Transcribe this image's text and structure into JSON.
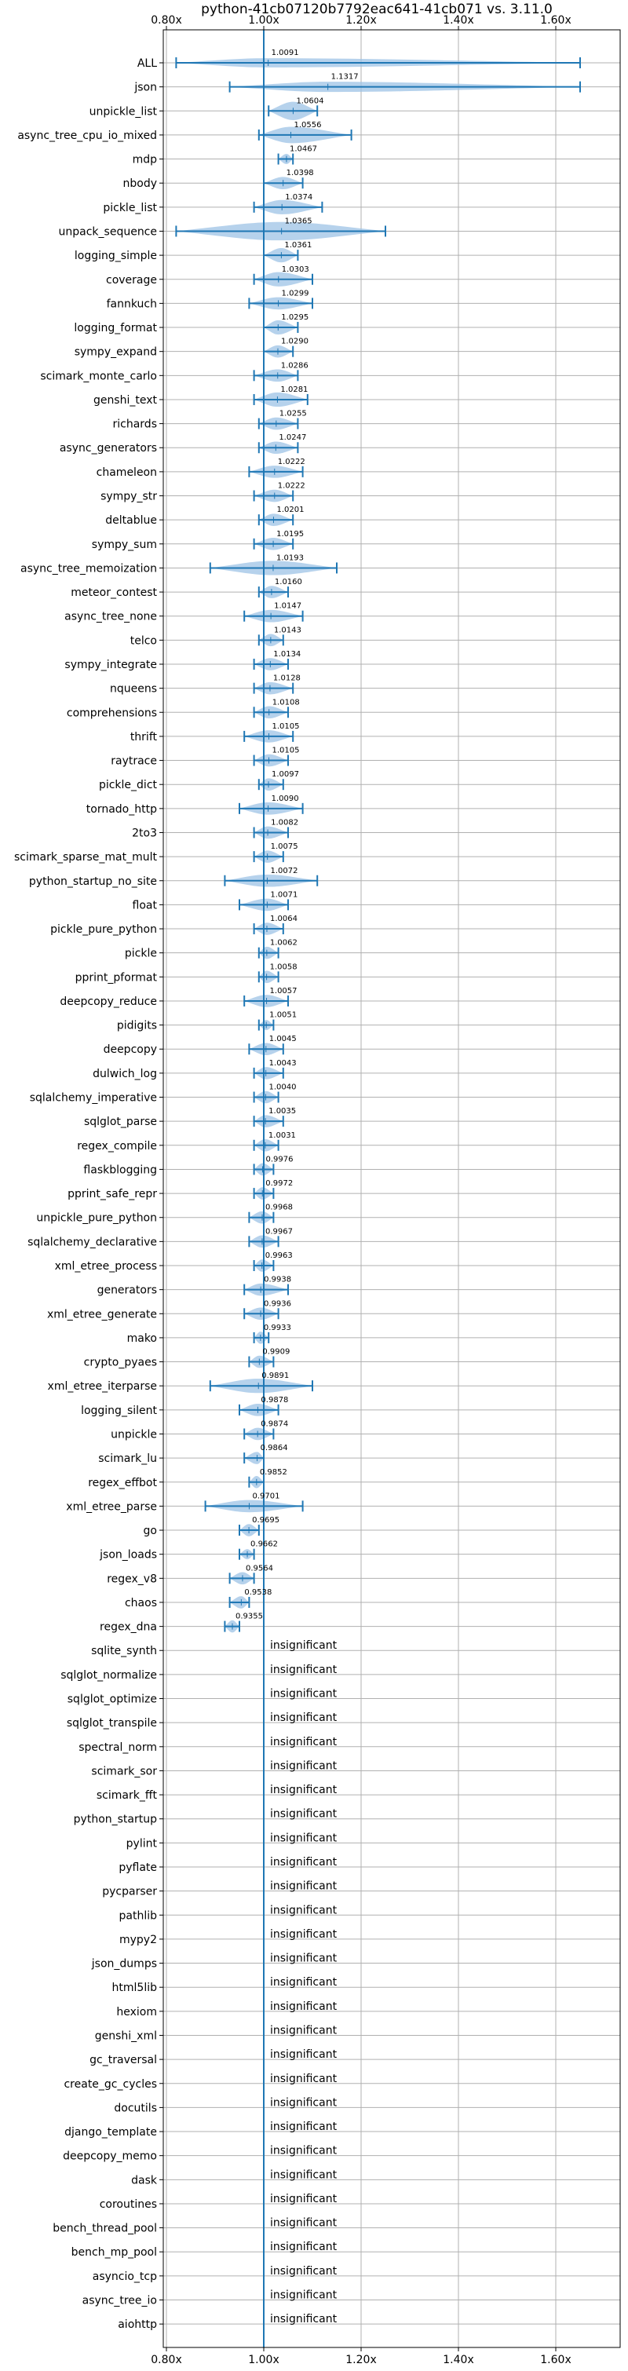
{
  "chart_data": {
    "type": "violin",
    "title": "python-41cb07120b7792eac641-41cb071 vs. 3.11.0",
    "xlim": [
      0.8,
      1.68
    ],
    "xticks": [
      0.8,
      1.0,
      1.2,
      1.4,
      1.6
    ],
    "xtick_labels": [
      "0.80x",
      "1.00x",
      "1.20x",
      "1.40x",
      "1.60x"
    ],
    "reference_line": 1.0,
    "grid": true,
    "insignificant_label": "insignificant",
    "colors": {
      "violin": "#9dc3e6",
      "line": "#1f77b4",
      "grid": "#b0b0b0"
    },
    "benchmarks": [
      {
        "name": "ALL",
        "value": 1.0091,
        "label": "1.0091",
        "low": 0.82,
        "high": 1.65,
        "width": 0.45
      },
      {
        "name": "json",
        "value": 1.1317,
        "label": "1.1317",
        "low": 0.93,
        "high": 1.65,
        "width": 0.5
      },
      {
        "name": "unpickle_list",
        "value": 1.0604,
        "label": "1.0604",
        "low": 1.01,
        "high": 1.11,
        "width": 0.9
      },
      {
        "name": "async_tree_cpu_io_mixed",
        "value": 1.0556,
        "label": "1.0556",
        "low": 0.99,
        "high": 1.18,
        "width": 0.8
      },
      {
        "name": "mdp",
        "value": 1.0467,
        "label": "1.0467",
        "low": 1.03,
        "high": 1.06,
        "width": 0.5
      },
      {
        "name": "nbody",
        "value": 1.0398,
        "label": "1.0398",
        "low": 1.0,
        "high": 1.08,
        "width": 0.6
      },
      {
        "name": "pickle_list",
        "value": 1.0374,
        "label": "1.0374",
        "low": 0.98,
        "high": 1.12,
        "width": 0.7
      },
      {
        "name": "unpack_sequence",
        "value": 1.0365,
        "label": "1.0365",
        "low": 0.82,
        "high": 1.25,
        "width": 0.9
      },
      {
        "name": "logging_simple",
        "value": 1.0361,
        "label": "1.0361",
        "low": 1.0,
        "high": 1.07,
        "width": 0.7
      },
      {
        "name": "coverage",
        "value": 1.0303,
        "label": "1.0303",
        "low": 0.98,
        "high": 1.1,
        "width": 0.7
      },
      {
        "name": "fannkuch",
        "value": 1.0299,
        "label": "1.0299",
        "low": 0.97,
        "high": 1.1,
        "width": 0.6
      },
      {
        "name": "logging_format",
        "value": 1.0295,
        "label": "1.0295",
        "low": 1.0,
        "high": 1.07,
        "width": 0.7
      },
      {
        "name": "sympy_expand",
        "value": 1.029,
        "label": "1.0290",
        "low": 1.0,
        "high": 1.06,
        "width": 0.6
      },
      {
        "name": "scimark_monte_carlo",
        "value": 1.0286,
        "label": "1.0286",
        "low": 0.98,
        "high": 1.07,
        "width": 0.6
      },
      {
        "name": "genshi_text",
        "value": 1.0281,
        "label": "1.0281",
        "low": 0.98,
        "high": 1.09,
        "width": 0.7
      },
      {
        "name": "richards",
        "value": 1.0255,
        "label": "1.0255",
        "low": 0.99,
        "high": 1.07,
        "width": 0.6
      },
      {
        "name": "async_generators",
        "value": 1.0247,
        "label": "1.0247",
        "low": 0.99,
        "high": 1.07,
        "width": 0.6
      },
      {
        "name": "chameleon",
        "value": 1.0222,
        "label": "1.0222",
        "low": 0.97,
        "high": 1.08,
        "width": 0.6
      },
      {
        "name": "sympy_str",
        "value": 1.0222,
        "label": "1.0222",
        "low": 0.98,
        "high": 1.06,
        "width": 0.6
      },
      {
        "name": "deltablue",
        "value": 1.0201,
        "label": "1.0201",
        "low": 0.99,
        "high": 1.06,
        "width": 0.6
      },
      {
        "name": "sympy_sum",
        "value": 1.0195,
        "label": "1.0195",
        "low": 0.98,
        "high": 1.06,
        "width": 0.6
      },
      {
        "name": "async_tree_memoization",
        "value": 1.0193,
        "label": "1.0193",
        "low": 0.89,
        "high": 1.15,
        "width": 0.7
      },
      {
        "name": "meteor_contest",
        "value": 1.016,
        "label": "1.0160",
        "low": 0.99,
        "high": 1.05,
        "width": 0.6
      },
      {
        "name": "async_tree_none",
        "value": 1.0147,
        "label": "1.0147",
        "low": 0.96,
        "high": 1.08,
        "width": 0.6
      },
      {
        "name": "telco",
        "value": 1.0143,
        "label": "1.0143",
        "low": 0.99,
        "high": 1.04,
        "width": 0.6
      },
      {
        "name": "sympy_integrate",
        "value": 1.0134,
        "label": "1.0134",
        "low": 0.98,
        "high": 1.05,
        "width": 0.6
      },
      {
        "name": "nqueens",
        "value": 1.0128,
        "label": "1.0128",
        "low": 0.98,
        "high": 1.06,
        "width": 0.6
      },
      {
        "name": "comprehensions",
        "value": 1.0108,
        "label": "1.0108",
        "low": 0.98,
        "high": 1.05,
        "width": 0.6
      },
      {
        "name": "thrift",
        "value": 1.0105,
        "label": "1.0105",
        "low": 0.96,
        "high": 1.06,
        "width": 0.6
      },
      {
        "name": "raytrace",
        "value": 1.0105,
        "label": "1.0105",
        "low": 0.98,
        "high": 1.05,
        "width": 0.6
      },
      {
        "name": "pickle_dict",
        "value": 1.0097,
        "label": "1.0097",
        "low": 0.99,
        "high": 1.04,
        "width": 0.6
      },
      {
        "name": "tornado_http",
        "value": 1.009,
        "label": "1.0090",
        "low": 0.95,
        "high": 1.08,
        "width": 0.6
      },
      {
        "name": "2to3",
        "value": 1.0082,
        "label": "1.0082",
        "low": 0.98,
        "high": 1.05,
        "width": 0.6
      },
      {
        "name": "scimark_sparse_mat_mult",
        "value": 1.0075,
        "label": "1.0075",
        "low": 0.98,
        "high": 1.04,
        "width": 0.6
      },
      {
        "name": "python_startup_no_site",
        "value": 1.0072,
        "label": "1.0072",
        "low": 0.92,
        "high": 1.11,
        "width": 0.6
      },
      {
        "name": "float",
        "value": 1.0071,
        "label": "1.0071",
        "low": 0.95,
        "high": 1.05,
        "width": 0.6
      },
      {
        "name": "pickle_pure_python",
        "value": 1.0064,
        "label": "1.0064",
        "low": 0.98,
        "high": 1.04,
        "width": 0.6
      },
      {
        "name": "pickle",
        "value": 1.0062,
        "label": "1.0062",
        "low": 0.99,
        "high": 1.03,
        "width": 0.6
      },
      {
        "name": "pprint_pformat",
        "value": 1.0058,
        "label": "1.0058",
        "low": 0.99,
        "high": 1.03,
        "width": 0.6
      },
      {
        "name": "deepcopy_reduce",
        "value": 1.0057,
        "label": "1.0057",
        "low": 0.96,
        "high": 1.05,
        "width": 0.6
      },
      {
        "name": "pidigits",
        "value": 1.0051,
        "label": "1.0051",
        "low": 0.99,
        "high": 1.02,
        "width": 0.5
      },
      {
        "name": "deepcopy",
        "value": 1.0045,
        "label": "1.0045",
        "low": 0.97,
        "high": 1.04,
        "width": 0.6
      },
      {
        "name": "dulwich_log",
        "value": 1.0043,
        "label": "1.0043",
        "low": 0.98,
        "high": 1.04,
        "width": 0.6
      },
      {
        "name": "sqlalchemy_imperative",
        "value": 1.004,
        "label": "1.0040",
        "low": 0.98,
        "high": 1.03,
        "width": 0.6
      },
      {
        "name": "sqlglot_parse",
        "value": 1.0035,
        "label": "1.0035",
        "low": 0.98,
        "high": 1.04,
        "width": 0.6
      },
      {
        "name": "regex_compile",
        "value": 1.0031,
        "label": "1.0031",
        "low": 0.98,
        "high": 1.03,
        "width": 0.6
      },
      {
        "name": "flaskblogging",
        "value": 0.9976,
        "label": "0.9976",
        "low": 0.98,
        "high": 1.02,
        "width": 0.6
      },
      {
        "name": "pprint_safe_repr",
        "value": 0.9972,
        "label": "0.9972",
        "low": 0.98,
        "high": 1.02,
        "width": 0.6
      },
      {
        "name": "unpickle_pure_python",
        "value": 0.9968,
        "label": "0.9968",
        "low": 0.97,
        "high": 1.02,
        "width": 0.6
      },
      {
        "name": "sqlalchemy_declarative",
        "value": 0.9967,
        "label": "0.9967",
        "low": 0.97,
        "high": 1.03,
        "width": 0.6
      },
      {
        "name": "xml_etree_process",
        "value": 0.9963,
        "label": "0.9963",
        "low": 0.98,
        "high": 1.02,
        "width": 0.6
      },
      {
        "name": "generators",
        "value": 0.9938,
        "label": "0.9938",
        "low": 0.96,
        "high": 1.05,
        "width": 0.6
      },
      {
        "name": "xml_etree_generate",
        "value": 0.9936,
        "label": "0.9936",
        "low": 0.96,
        "high": 1.03,
        "width": 0.6
      },
      {
        "name": "mako",
        "value": 0.9933,
        "label": "0.9933",
        "low": 0.98,
        "high": 1.01,
        "width": 0.6
      },
      {
        "name": "crypto_pyaes",
        "value": 0.9909,
        "label": "0.9909",
        "low": 0.97,
        "high": 1.02,
        "width": 0.6
      },
      {
        "name": "xml_etree_iterparse",
        "value": 0.9891,
        "label": "0.9891",
        "low": 0.89,
        "high": 1.1,
        "width": 0.7
      },
      {
        "name": "logging_silent",
        "value": 0.9878,
        "label": "0.9878",
        "low": 0.95,
        "high": 1.03,
        "width": 0.6
      },
      {
        "name": "unpickle",
        "value": 0.9874,
        "label": "0.9874",
        "low": 0.96,
        "high": 1.02,
        "width": 0.6
      },
      {
        "name": "scimark_lu",
        "value": 0.9864,
        "label": "0.9864",
        "low": 0.96,
        "high": 1.0,
        "width": 0.6
      },
      {
        "name": "regex_effbot",
        "value": 0.9852,
        "label": "0.9852",
        "low": 0.97,
        "high": 1.0,
        "width": 0.6
      },
      {
        "name": "xml_etree_parse",
        "value": 0.9701,
        "label": "0.9701",
        "low": 0.88,
        "high": 1.08,
        "width": 0.6
      },
      {
        "name": "go",
        "value": 0.9695,
        "label": "0.9695",
        "low": 0.95,
        "high": 0.99,
        "width": 0.6
      },
      {
        "name": "json_loads",
        "value": 0.9662,
        "label": "0.9662",
        "low": 0.95,
        "high": 0.98,
        "width": 0.5
      },
      {
        "name": "regex_v8",
        "value": 0.9564,
        "label": "0.9564",
        "low": 0.93,
        "high": 0.98,
        "width": 0.6
      },
      {
        "name": "chaos",
        "value": 0.9538,
        "label": "0.9538",
        "low": 0.93,
        "high": 0.97,
        "width": 0.6
      },
      {
        "name": "regex_dna",
        "value": 0.9355,
        "label": "0.9355",
        "low": 0.92,
        "high": 0.95,
        "width": 0.6
      },
      {
        "name": "sqlite_synth",
        "value": null,
        "label": "insignificant"
      },
      {
        "name": "sqlglot_normalize",
        "value": null,
        "label": "insignificant"
      },
      {
        "name": "sqlglot_optimize",
        "value": null,
        "label": "insignificant"
      },
      {
        "name": "sqlglot_transpile",
        "value": null,
        "label": "insignificant"
      },
      {
        "name": "spectral_norm",
        "value": null,
        "label": "insignificant"
      },
      {
        "name": "scimark_sor",
        "value": null,
        "label": "insignificant"
      },
      {
        "name": "scimark_fft",
        "value": null,
        "label": "insignificant"
      },
      {
        "name": "python_startup",
        "value": null,
        "label": "insignificant"
      },
      {
        "name": "pylint",
        "value": null,
        "label": "insignificant"
      },
      {
        "name": "pyflate",
        "value": null,
        "label": "insignificant"
      },
      {
        "name": "pycparser",
        "value": null,
        "label": "insignificant"
      },
      {
        "name": "pathlib",
        "value": null,
        "label": "insignificant"
      },
      {
        "name": "mypy2",
        "value": null,
        "label": "insignificant"
      },
      {
        "name": "json_dumps",
        "value": null,
        "label": "insignificant"
      },
      {
        "name": "html5lib",
        "value": null,
        "label": "insignificant"
      },
      {
        "name": "hexiom",
        "value": null,
        "label": "insignificant"
      },
      {
        "name": "genshi_xml",
        "value": null,
        "label": "insignificant"
      },
      {
        "name": "gc_traversal",
        "value": null,
        "label": "insignificant"
      },
      {
        "name": "create_gc_cycles",
        "value": null,
        "label": "insignificant"
      },
      {
        "name": "docutils",
        "value": null,
        "label": "insignificant"
      },
      {
        "name": "django_template",
        "value": null,
        "label": "insignificant"
      },
      {
        "name": "deepcopy_memo",
        "value": null,
        "label": "insignificant"
      },
      {
        "name": "dask",
        "value": null,
        "label": "insignificant"
      },
      {
        "name": "coroutines",
        "value": null,
        "label": "insignificant"
      },
      {
        "name": "bench_thread_pool",
        "value": null,
        "label": "insignificant"
      },
      {
        "name": "bench_mp_pool",
        "value": null,
        "label": "insignificant"
      },
      {
        "name": "asyncio_tcp",
        "value": null,
        "label": "insignificant"
      },
      {
        "name": "async_tree_io",
        "value": null,
        "label": "insignificant"
      },
      {
        "name": "aiohttp",
        "value": null,
        "label": "insignificant"
      }
    ]
  }
}
